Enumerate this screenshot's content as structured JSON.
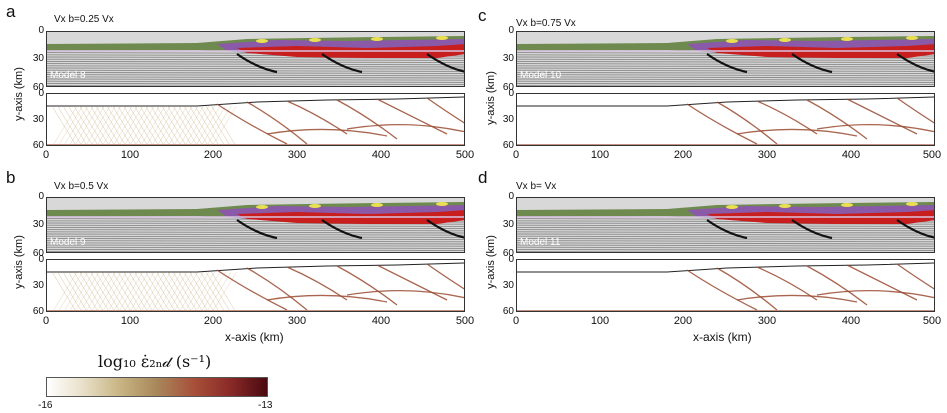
{
  "panels": [
    {
      "letter": "a",
      "vx_label": "Vx b=0.25 Vx",
      "model": "Model 8"
    },
    {
      "letter": "b",
      "vx_label": "Vx b=0.5 Vx",
      "model": "Model 9"
    },
    {
      "letter": "c",
      "vx_label": "Vx b=0.75 Vx",
      "model": "Model 10"
    },
    {
      "letter": "d",
      "vx_label": "Vx b= Vx",
      "model": "Model 11"
    }
  ],
  "axes": {
    "ylabel": "y-axis (km)",
    "xlabel": "x-axis (km)",
    "yticks_top": [
      "0",
      "30",
      "60"
    ],
    "yticks_bottom": [
      "0",
      "30",
      "60"
    ],
    "xticks": [
      "0",
      "100",
      "200",
      "300",
      "400",
      "500"
    ],
    "xlim": [
      0,
      500
    ],
    "ylim": [
      0,
      60
    ]
  },
  "colorbar": {
    "title": "log₁₀ ε̇₂ₙ𝒹 (s⁻¹)",
    "min_label": "-16",
    "max_label": "-13",
    "colors": [
      "#ffffff",
      "#e8dfc8",
      "#c8b482",
      "#a8875a",
      "#a8503a",
      "#8a2a28",
      "#4a0a10"
    ]
  },
  "colors": {
    "stripe": "#8a8a8a",
    "crust_green": "#6f8a4e",
    "crust_purple": "#8a5aa8",
    "crust_red": "#c81e1e",
    "crust_yellow": "#e8e050",
    "strain_brown": "#9a4a30",
    "strain_tan": "#c8a878"
  }
}
